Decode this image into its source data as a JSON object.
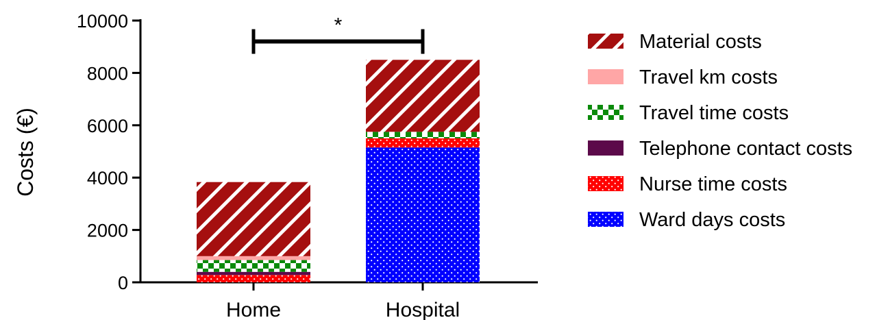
{
  "chart_data": {
    "type": "bar",
    "stacked": true,
    "categories": [
      "Home",
      "Hospital"
    ],
    "ylabel": "Costs (€)",
    "ylim": [
      0,
      10000
    ],
    "yticks": [
      0,
      2000,
      4000,
      6000,
      8000,
      10000
    ],
    "legend_position": "right",
    "series": [
      {
        "name": "Ward days costs",
        "values": [
          0,
          5150
        ],
        "color": "#0000ff",
        "pattern": "dots"
      },
      {
        "name": "Nurse time costs",
        "values": [
          280,
          350
        ],
        "color": "#ff0000",
        "pattern": "dots"
      },
      {
        "name": "Telephone contact costs",
        "values": [
          120,
          0
        ],
        "color": "#5c0a4a",
        "pattern": "solid"
      },
      {
        "name": "Travel time costs",
        "values": [
          450,
          250
        ],
        "color": "#0a8a0a",
        "pattern": "checker"
      },
      {
        "name": "Travel km costs",
        "values": [
          150,
          0
        ],
        "color": "#ffa6a6",
        "pattern": "solid"
      },
      {
        "name": "Material costs",
        "values": [
          2830,
          2750
        ],
        "color": "#a50f0f",
        "pattern": "stripes"
      }
    ],
    "significance": {
      "from": "Home",
      "to": "Hospital",
      "y": 9200,
      "label": "*"
    }
  }
}
